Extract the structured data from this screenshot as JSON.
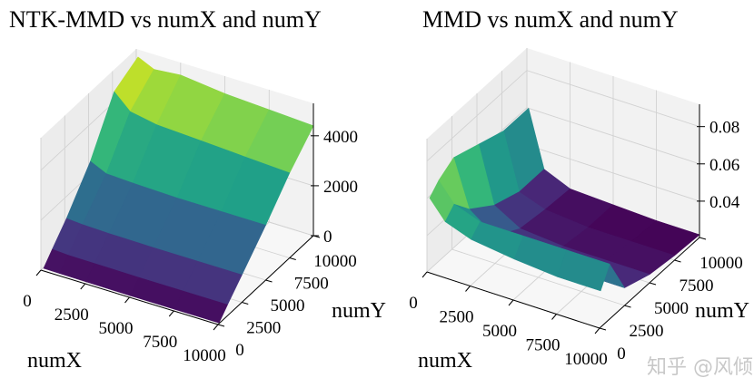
{
  "watermark": "知乎 @风倾",
  "chart_data": [
    {
      "type": "surface",
      "title": "NTK-MMD vs numX and numY",
      "xlabel": "numX",
      "ylabel": "numY",
      "zlabel": "",
      "colormap": "viridis",
      "xlim": [
        0,
        10000
      ],
      "ylim": [
        0,
        10000
      ],
      "zlim": [
        0,
        5300
      ],
      "x_ticks": [
        "0",
        "2500",
        "5000",
        "7500",
        "10000"
      ],
      "y_ticks": [
        "0",
        "2500",
        "5000",
        "7500",
        "10000"
      ],
      "z_ticks": [
        "0",
        "2000",
        "4000"
      ],
      "grid": true,
      "x": [
        100,
        1000,
        2500,
        5000,
        7500,
        10000
      ],
      "y": [
        100,
        1000,
        2500,
        5000,
        7500,
        10000
      ],
      "z": [
        [
          60,
          50,
          40,
          30,
          30,
          30
        ],
        [
          500,
          460,
          450,
          440,
          440,
          440
        ],
        [
          1200,
          1150,
          1120,
          1100,
          1100,
          1100
        ],
        [
          2600,
          2300,
          2250,
          2200,
          2200,
          2200
        ],
        [
          4500,
          3900,
          3700,
          3600,
          3500,
          3400
        ],
        [
          5000,
          4700,
          4800,
          4600,
          4500,
          4400
        ]
      ]
    },
    {
      "type": "surface",
      "title": "MMD vs numX and numY",
      "xlabel": "numX",
      "ylabel": "numY",
      "zlabel": "",
      "colormap": "viridis",
      "xlim": [
        0,
        10000
      ],
      "ylim": [
        0,
        10000
      ],
      "zlim": [
        0.0205,
        0.092
      ],
      "x_ticks": [
        "0",
        "2500",
        "5000",
        "7500",
        "10000"
      ],
      "y_ticks": [
        "0",
        "2500",
        "5000",
        "7500",
        "10000"
      ],
      "z_ticks": [
        "0.04",
        "0.06",
        "0.08"
      ],
      "grid": true,
      "x": [
        100,
        1000,
        2500,
        5000,
        7500,
        10000
      ],
      "y": [
        100,
        1000,
        2500,
        5000,
        7500,
        10000
      ],
      "z": [
        [
          0.06,
          0.05,
          0.045,
          0.042,
          0.04,
          0.04
        ],
        [
          0.065,
          0.055,
          0.05,
          0.05,
          0.05,
          0.05
        ],
        [
          0.07,
          0.045,
          0.035,
          0.03,
          0.03,
          0.03
        ],
        [
          0.065,
          0.035,
          0.027,
          0.025,
          0.025,
          0.025
        ],
        [
          0.06,
          0.03,
          0.025,
          0.023,
          0.023,
          0.023
        ],
        [
          0.06,
          0.03,
          0.024,
          0.023,
          0.022,
          0.022
        ]
      ]
    }
  ]
}
